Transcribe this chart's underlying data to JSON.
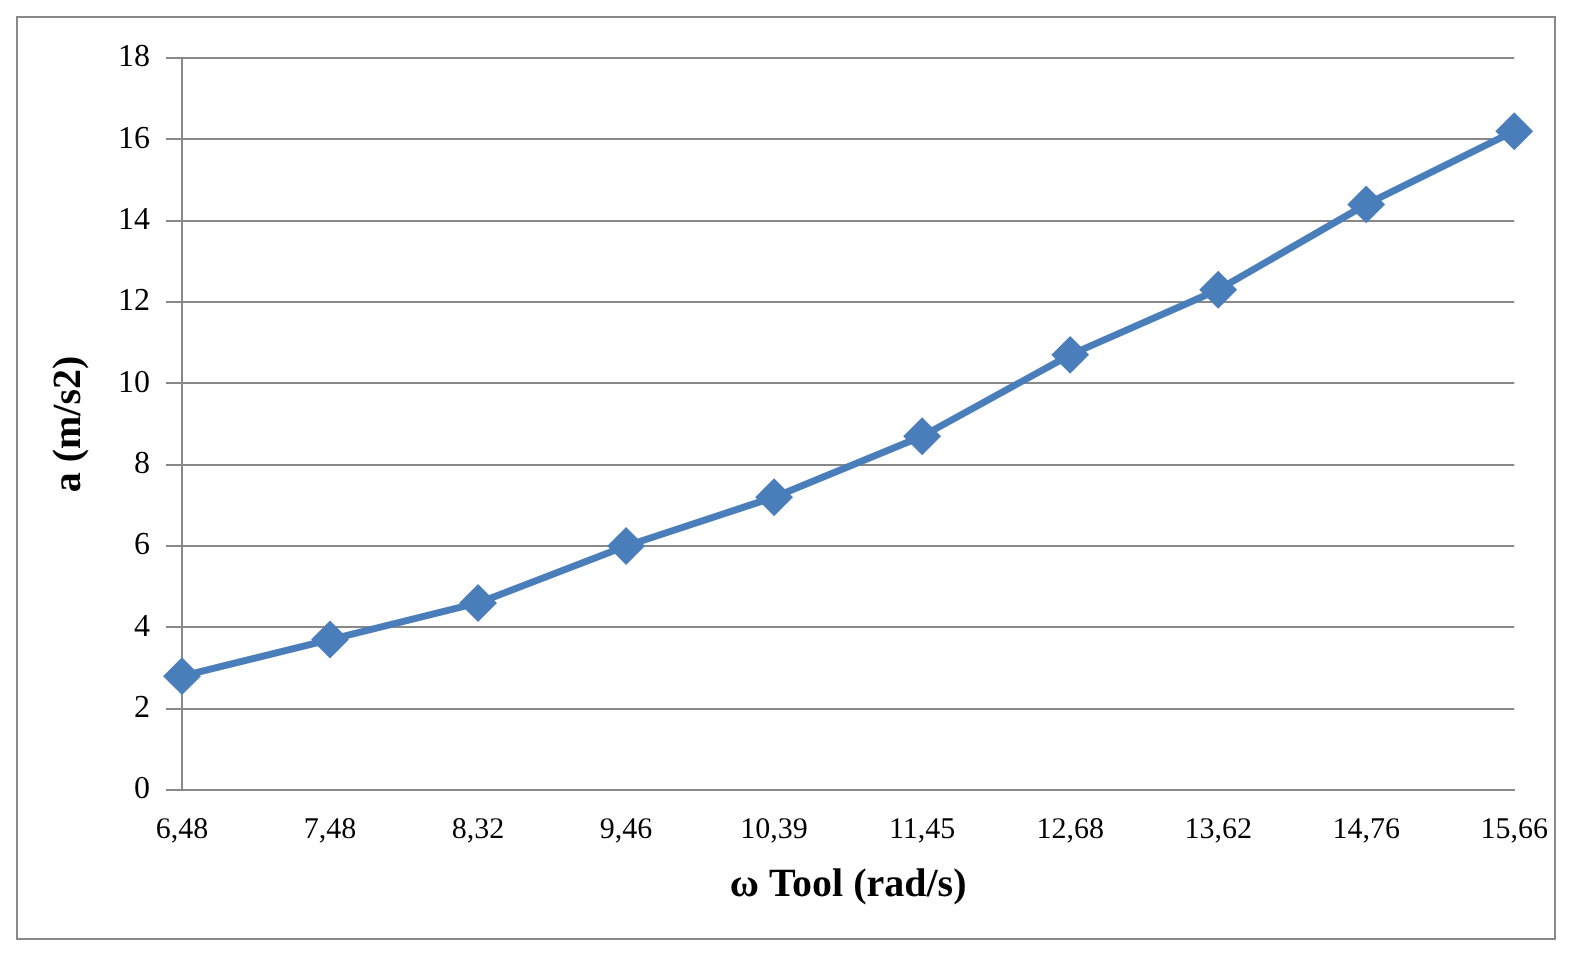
{
  "chart_data": {
    "type": "line",
    "xlabel": "ω Tool (rad/s)",
    "ylabel": "a (m/s2)",
    "categories": [
      "6,48",
      "7,48",
      "8,32",
      "9,46",
      "10,39",
      "11,45",
      "12,68",
      "13,62",
      "14,76",
      "15,66"
    ],
    "series": [
      {
        "color": "#4a7ebb",
        "values": [
          2.8,
          3.7,
          4.6,
          6.0,
          7.2,
          8.7,
          10.7,
          12.3,
          14.4,
          16.2
        ]
      }
    ],
    "ylim": [
      0,
      18
    ],
    "yticks": [
      0,
      2,
      4,
      6,
      8,
      10,
      12,
      14,
      16,
      18
    ],
    "grid": "y",
    "legend": false,
    "marker": "diamond",
    "line_style": "solid"
  }
}
